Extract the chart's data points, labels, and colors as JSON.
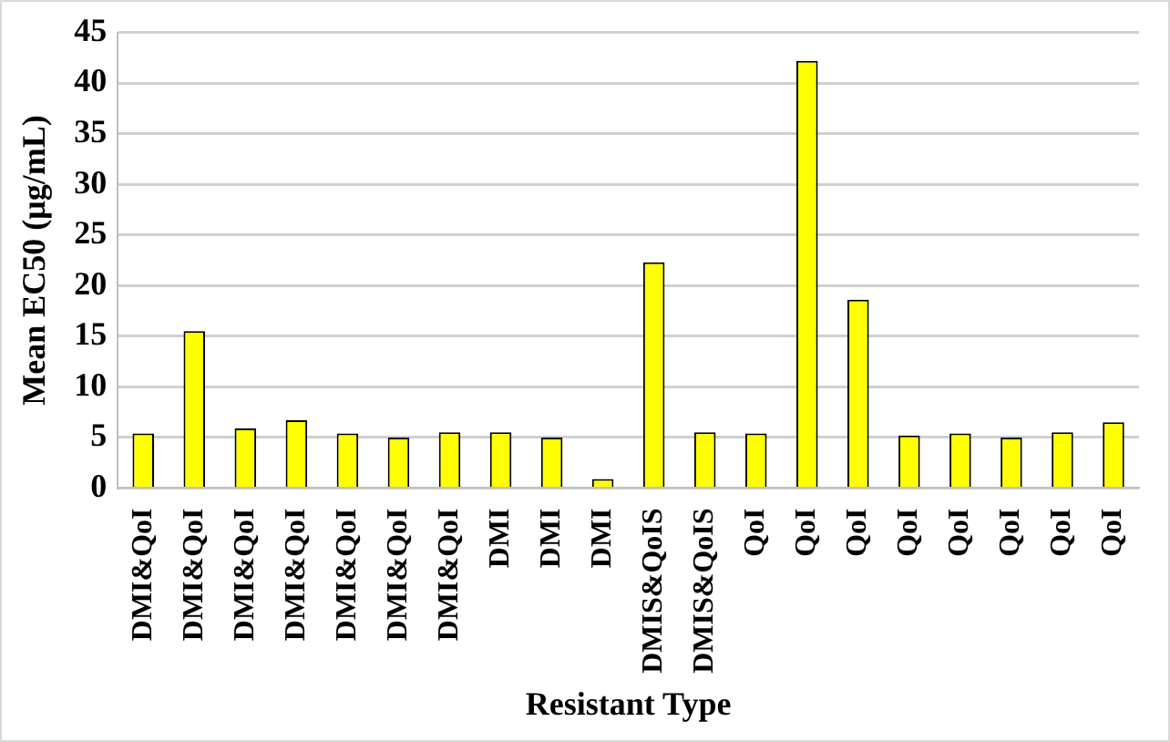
{
  "chart_data": {
    "type": "bar",
    "xlabel": "Resistant Type",
    "ylabel": "Mean EC50 (μg/mL)",
    "categories": [
      "DMI&QoI",
      "DMI&QoI",
      "DMI&QoI",
      "DMI&QoI",
      "DMI&QoI",
      "DMI&QoI",
      "DMI&QoI",
      "DMI",
      "DMI",
      "DMI",
      "DMIS&QoIS",
      "DMIS&QoIS",
      "QoI",
      "QoI",
      "QoI",
      "QoI",
      "QoI",
      "QoI",
      "QoI",
      "QoI"
    ],
    "values": [
      5.4,
      15.5,
      5.9,
      6.7,
      5.4,
      5.0,
      5.5,
      5.5,
      5.0,
      0.9,
      22.3,
      5.5,
      5.4,
      42.2,
      18.6,
      5.2,
      5.4,
      5.0,
      5.5,
      6.5
    ],
    "color": "#ffff00",
    "ylim": [
      0,
      45
    ],
    "yticks": [
      0,
      5,
      10,
      15,
      20,
      25,
      30,
      35,
      40,
      45
    ],
    "grid": "y",
    "legend": false
  }
}
